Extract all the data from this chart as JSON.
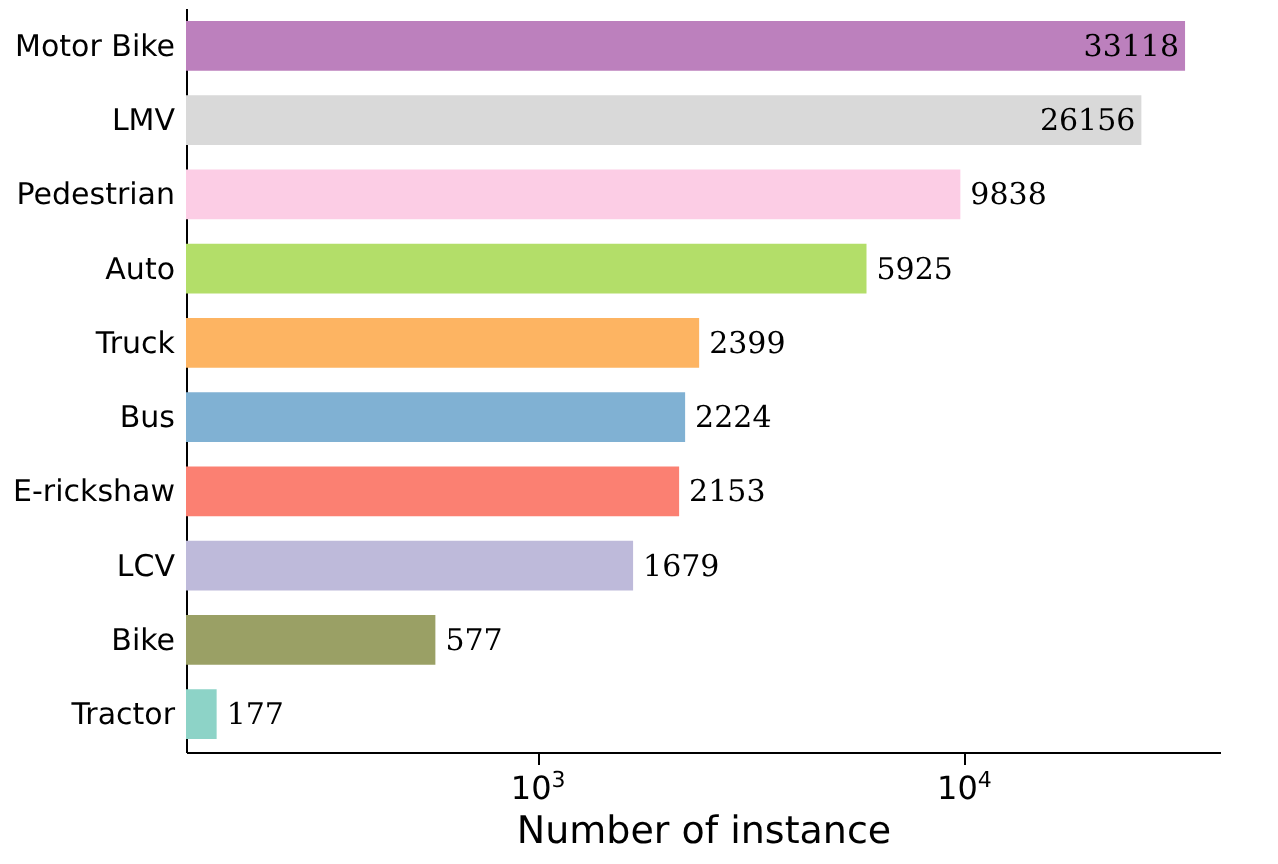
{
  "chart_data": {
    "type": "bar",
    "orientation": "horizontal",
    "xlabel": "Number of instance",
    "categories": [
      "Motor Bike",
      "LMV",
      "Pedestrian",
      "Auto",
      "Truck",
      "Bus",
      "E-rickshaw",
      "LCV",
      "Bike",
      "Tractor"
    ],
    "values": [
      33118,
      26156,
      9838,
      5925,
      2399,
      2224,
      2153,
      1679,
      577,
      177
    ],
    "colors": [
      "#bc80bd",
      "#d9d9d9",
      "#fccde5",
      "#b3de69",
      "#fdb462",
      "#80b1d3",
      "#fb8072",
      "#bebada",
      "#9aa065",
      "#8dd3c7"
    ],
    "log": "x",
    "xlim": [
      150,
      40000
    ],
    "xticks": [
      {
        "value": 1000,
        "label": "10$^{3}$"
      },
      {
        "value": 10000,
        "label": "10$^{4}$"
      }
    ],
    "data_labels": true,
    "grid": false,
    "legend": false
  }
}
